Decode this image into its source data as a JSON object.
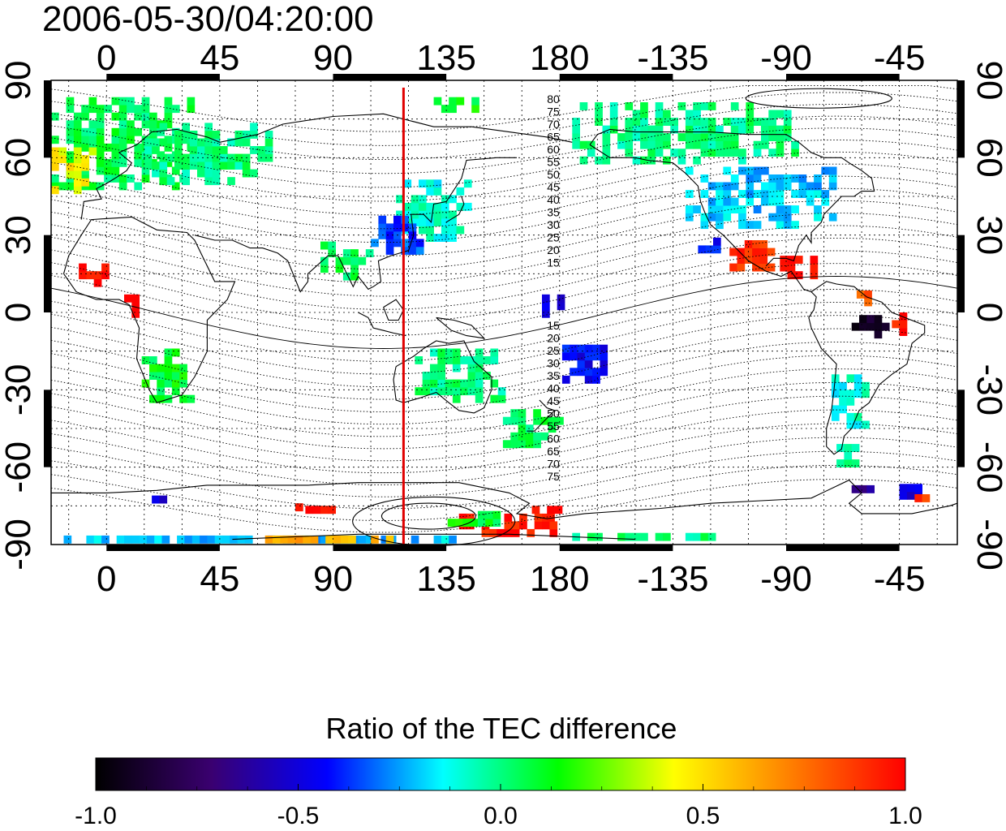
{
  "title": "2006-05-30/04:20:00",
  "map": {
    "lon_range": [
      -22,
      338
    ],
    "lat_range": [
      -90,
      90
    ],
    "lon_ticks": [
      {
        "value": 0,
        "label": "0"
      },
      {
        "value": 45,
        "label": "45"
      },
      {
        "value": 90,
        "label": "90"
      },
      {
        "value": 135,
        "label": "135"
      },
      {
        "value": 180,
        "label": "180"
      },
      {
        "value": 225,
        "label": "-135"
      },
      {
        "value": 270,
        "label": "-90"
      },
      {
        "value": 315,
        "label": "-45"
      }
    ],
    "lat_ticks": [
      {
        "value": 90,
        "label": "90"
      },
      {
        "value": 60,
        "label": "60"
      },
      {
        "value": 30,
        "label": "30"
      },
      {
        "value": 0,
        "label": "0"
      },
      {
        "value": -30,
        "label": "-30"
      },
      {
        "value": -60,
        "label": "-60"
      },
      {
        "value": -90,
        "label": "-90"
      }
    ],
    "grid": true,
    "marker_lon": 118,
    "marker_color": "#e00000",
    "contour_labels_north": [
      "80",
      "75",
      "70",
      "65",
      "60",
      "55",
      "50",
      "45",
      "40",
      "35",
      "30",
      "25",
      "20",
      "15"
    ],
    "contour_labels_south": [
      "15",
      "20",
      "25",
      "30",
      "35",
      "40",
      "45",
      "50",
      "55",
      "60",
      "65",
      "70",
      "75"
    ]
  },
  "colorbar": {
    "title": "Ratio of the TEC difference",
    "min": -1.0,
    "max": 1.0,
    "tick_labels": [
      "-1.0",
      "-0.5",
      "0.0",
      "0.5",
      "1.0"
    ],
    "stops": [
      "#000000",
      "#3a0070",
      "#0000ff",
      "#00ffff",
      "#00ff00",
      "#ffff00",
      "#ff8000",
      "#ff0000"
    ]
  },
  "tec_patches": [
    {
      "lon": 5,
      "lat": 65,
      "w": 60,
      "h": 35,
      "v": 0.05
    },
    {
      "lon": -15,
      "lat": 55,
      "w": 20,
      "h": 18,
      "v": 0.45
    },
    {
      "lon": 40,
      "lat": 62,
      "w": 50,
      "h": 25,
      "v": 0.0
    },
    {
      "lon": 130,
      "lat": 40,
      "w": 30,
      "h": 25,
      "v": -0.1
    },
    {
      "lon": 115,
      "lat": 30,
      "w": 20,
      "h": 15,
      "v": -0.35
    },
    {
      "lon": 230,
      "lat": 70,
      "w": 90,
      "h": 25,
      "v": 0.0
    },
    {
      "lon": 260,
      "lat": 45,
      "w": 60,
      "h": 25,
      "v": -0.2
    },
    {
      "lon": 260,
      "lat": 22,
      "w": 25,
      "h": 12,
      "v": 0.9
    },
    {
      "lon": 275,
      "lat": 18,
      "w": 15,
      "h": 10,
      "v": 1.0
    },
    {
      "lon": -5,
      "lat": 15,
      "w": 12,
      "h": 10,
      "v": 1.0
    },
    {
      "lon": 10,
      "lat": 2,
      "w": 6,
      "h": 8,
      "v": 1.0
    },
    {
      "lon": 25,
      "lat": -25,
      "w": 22,
      "h": 20,
      "v": 0.1
    },
    {
      "lon": 95,
      "lat": 20,
      "w": 20,
      "h": 15,
      "v": 0.05
    },
    {
      "lon": 140,
      "lat": -25,
      "w": 35,
      "h": 20,
      "v": 0.0
    },
    {
      "lon": 170,
      "lat": -45,
      "w": 25,
      "h": 15,
      "v": 0.05
    },
    {
      "lon": 190,
      "lat": -20,
      "w": 18,
      "h": 15,
      "v": -0.45
    },
    {
      "lon": 178,
      "lat": 2,
      "w": 10,
      "h": 8,
      "v": -0.5
    },
    {
      "lon": 303,
      "lat": -5,
      "w": 14,
      "h": 10,
      "v": -0.9
    },
    {
      "lon": 315,
      "lat": -5,
      "w": 12,
      "h": 8,
      "v": 0.95
    },
    {
      "lon": 300,
      "lat": 5,
      "w": 10,
      "h": 5,
      "v": 0.8
    },
    {
      "lon": 295,
      "lat": -35,
      "w": 14,
      "h": 20,
      "v": -0.1
    },
    {
      "lon": 295,
      "lat": -55,
      "w": 10,
      "h": 10,
      "v": 0.0
    },
    {
      "lon": 160,
      "lat": -82,
      "w": 40,
      "h": 10,
      "v": 0.95
    },
    {
      "lon": 145,
      "lat": -80,
      "w": 25,
      "h": 6,
      "v": 0.1
    },
    {
      "lon": 175,
      "lat": -78,
      "w": 12,
      "h": 6,
      "v": 1.0
    },
    {
      "lon": 320,
      "lat": -70,
      "w": 10,
      "h": 5,
      "v": -0.5
    },
    {
      "lon": 325,
      "lat": -72,
      "w": 8,
      "h": 3,
      "v": 0.9
    },
    {
      "lon": 300,
      "lat": -68,
      "w": 8,
      "h": 4,
      "v": -0.6
    },
    {
      "lon": 60,
      "lat": -88,
      "w": 160,
      "h": 3,
      "v": -0.2
    },
    {
      "lon": 90,
      "lat": -88,
      "w": 60,
      "h": 3,
      "v": 0.6
    },
    {
      "lon": 220,
      "lat": -87,
      "w": 70,
      "h": 3,
      "v": 0.0
    },
    {
      "lon": 70,
      "lat": -75,
      "w": 14,
      "h": 4,
      "v": 0.95
    },
    {
      "lon": 85,
      "lat": -76,
      "w": 12,
      "h": 4,
      "v": 1.0
    },
    {
      "lon": 20,
      "lat": -72,
      "w": 10,
      "h": 4,
      "v": -0.5
    },
    {
      "lon": 240,
      "lat": 25,
      "w": 10,
      "h": 10,
      "v": -0.45
    },
    {
      "lon": 140,
      "lat": 80,
      "w": 20,
      "h": 5,
      "v": 0.1
    }
  ]
}
